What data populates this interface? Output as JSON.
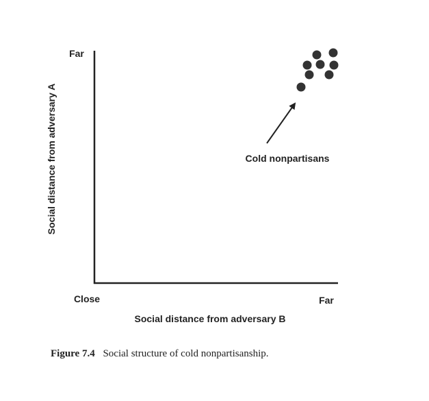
{
  "figure": {
    "y_axis": {
      "label": "Social distance from adversary A",
      "max_label": "Far"
    },
    "x_axis": {
      "label": "Social distance from adversary B",
      "min_label": "Close",
      "max_label": "Far"
    },
    "annotation": "Cold nonpartisans",
    "caption": {
      "number": "Figure 7.4",
      "text": "Social structure of cold nonpartisanship."
    }
  }
}
